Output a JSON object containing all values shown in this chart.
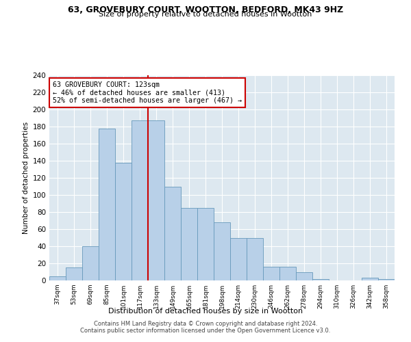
{
  "title_line1": "63, GROVEBURY COURT, WOOTTON, BEDFORD, MK43 9HZ",
  "title_line2": "Size of property relative to detached houses in Wootton",
  "xlabel": "Distribution of detached houses by size in Wootton",
  "ylabel": "Number of detached properties",
  "bar_color": "#b8d0e8",
  "bar_edge_color": "#6699bb",
  "bin_labels": [
    "37sqm",
    "53sqm",
    "69sqm",
    "85sqm",
    "101sqm",
    "117sqm",
    "133sqm",
    "149sqm",
    "165sqm",
    "181sqm",
    "198sqm",
    "214sqm",
    "230sqm",
    "246sqm",
    "262sqm",
    "278sqm",
    "294sqm",
    "310sqm",
    "326sqm",
    "342sqm",
    "358sqm"
  ],
  "bar_heights": [
    5,
    15,
    40,
    178,
    138,
    187,
    187,
    110,
    85,
    85,
    68,
    50,
    50,
    16,
    16,
    10,
    2,
    0,
    0,
    3,
    2
  ],
  "vline_pos": 5.5,
  "vline_color": "#cc0000",
  "annotation_title": "63 GROVEBURY COURT: 123sqm",
  "annotation_line1": "← 46% of detached houses are smaller (413)",
  "annotation_line2": "52% of semi-detached houses are larger (467) →",
  "annotation_box_color": "#ffffff",
  "annotation_box_edge": "#cc0000",
  "ylim": [
    0,
    240
  ],
  "yticks": [
    0,
    20,
    40,
    60,
    80,
    100,
    120,
    140,
    160,
    180,
    200,
    220,
    240
  ],
  "background_color": "#dde8f0",
  "footer_line1": "Contains HM Land Registry data © Crown copyright and database right 2024.",
  "footer_line2": "Contains public sector information licensed under the Open Government Licence v3.0."
}
